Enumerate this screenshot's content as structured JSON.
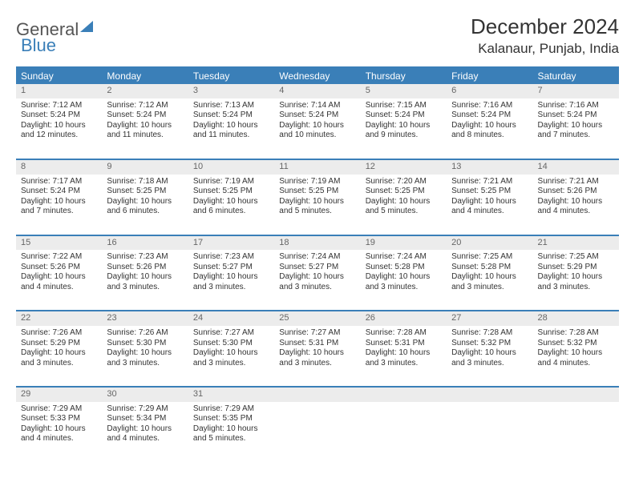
{
  "logo": {
    "part1": "General",
    "part2": "Blue"
  },
  "title": "December 2024",
  "location": "Kalanaur, Punjab, India",
  "colors": {
    "header_bg": "#3a7fb8",
    "header_text": "#ffffff",
    "daynum_bg": "#ececec",
    "daynum_text": "#666666",
    "body_text": "#333333",
    "rule": "#3a7fb8",
    "page_bg": "#ffffff"
  },
  "weekdays": [
    "Sunday",
    "Monday",
    "Tuesday",
    "Wednesday",
    "Thursday",
    "Friday",
    "Saturday"
  ],
  "weeks": [
    [
      {
        "n": 1,
        "sr": "7:12 AM",
        "ss": "5:24 PM",
        "dl": "10 hours and 12 minutes."
      },
      {
        "n": 2,
        "sr": "7:12 AM",
        "ss": "5:24 PM",
        "dl": "10 hours and 11 minutes."
      },
      {
        "n": 3,
        "sr": "7:13 AM",
        "ss": "5:24 PM",
        "dl": "10 hours and 11 minutes."
      },
      {
        "n": 4,
        "sr": "7:14 AM",
        "ss": "5:24 PM",
        "dl": "10 hours and 10 minutes."
      },
      {
        "n": 5,
        "sr": "7:15 AM",
        "ss": "5:24 PM",
        "dl": "10 hours and 9 minutes."
      },
      {
        "n": 6,
        "sr": "7:16 AM",
        "ss": "5:24 PM",
        "dl": "10 hours and 8 minutes."
      },
      {
        "n": 7,
        "sr": "7:16 AM",
        "ss": "5:24 PM",
        "dl": "10 hours and 7 minutes."
      }
    ],
    [
      {
        "n": 8,
        "sr": "7:17 AM",
        "ss": "5:24 PM",
        "dl": "10 hours and 7 minutes."
      },
      {
        "n": 9,
        "sr": "7:18 AM",
        "ss": "5:25 PM",
        "dl": "10 hours and 6 minutes."
      },
      {
        "n": 10,
        "sr": "7:19 AM",
        "ss": "5:25 PM",
        "dl": "10 hours and 6 minutes."
      },
      {
        "n": 11,
        "sr": "7:19 AM",
        "ss": "5:25 PM",
        "dl": "10 hours and 5 minutes."
      },
      {
        "n": 12,
        "sr": "7:20 AM",
        "ss": "5:25 PM",
        "dl": "10 hours and 5 minutes."
      },
      {
        "n": 13,
        "sr": "7:21 AM",
        "ss": "5:25 PM",
        "dl": "10 hours and 4 minutes."
      },
      {
        "n": 14,
        "sr": "7:21 AM",
        "ss": "5:26 PM",
        "dl": "10 hours and 4 minutes."
      }
    ],
    [
      {
        "n": 15,
        "sr": "7:22 AM",
        "ss": "5:26 PM",
        "dl": "10 hours and 4 minutes."
      },
      {
        "n": 16,
        "sr": "7:23 AM",
        "ss": "5:26 PM",
        "dl": "10 hours and 3 minutes."
      },
      {
        "n": 17,
        "sr": "7:23 AM",
        "ss": "5:27 PM",
        "dl": "10 hours and 3 minutes."
      },
      {
        "n": 18,
        "sr": "7:24 AM",
        "ss": "5:27 PM",
        "dl": "10 hours and 3 minutes."
      },
      {
        "n": 19,
        "sr": "7:24 AM",
        "ss": "5:28 PM",
        "dl": "10 hours and 3 minutes."
      },
      {
        "n": 20,
        "sr": "7:25 AM",
        "ss": "5:28 PM",
        "dl": "10 hours and 3 minutes."
      },
      {
        "n": 21,
        "sr": "7:25 AM",
        "ss": "5:29 PM",
        "dl": "10 hours and 3 minutes."
      }
    ],
    [
      {
        "n": 22,
        "sr": "7:26 AM",
        "ss": "5:29 PM",
        "dl": "10 hours and 3 minutes."
      },
      {
        "n": 23,
        "sr": "7:26 AM",
        "ss": "5:30 PM",
        "dl": "10 hours and 3 minutes."
      },
      {
        "n": 24,
        "sr": "7:27 AM",
        "ss": "5:30 PM",
        "dl": "10 hours and 3 minutes."
      },
      {
        "n": 25,
        "sr": "7:27 AM",
        "ss": "5:31 PM",
        "dl": "10 hours and 3 minutes."
      },
      {
        "n": 26,
        "sr": "7:28 AM",
        "ss": "5:31 PM",
        "dl": "10 hours and 3 minutes."
      },
      {
        "n": 27,
        "sr": "7:28 AM",
        "ss": "5:32 PM",
        "dl": "10 hours and 3 minutes."
      },
      {
        "n": 28,
        "sr": "7:28 AM",
        "ss": "5:32 PM",
        "dl": "10 hours and 4 minutes."
      }
    ],
    [
      {
        "n": 29,
        "sr": "7:29 AM",
        "ss": "5:33 PM",
        "dl": "10 hours and 4 minutes."
      },
      {
        "n": 30,
        "sr": "7:29 AM",
        "ss": "5:34 PM",
        "dl": "10 hours and 4 minutes."
      },
      {
        "n": 31,
        "sr": "7:29 AM",
        "ss": "5:35 PM",
        "dl": "10 hours and 5 minutes."
      },
      null,
      null,
      null,
      null
    ]
  ],
  "labels": {
    "sunrise": "Sunrise:",
    "sunset": "Sunset:",
    "daylight": "Daylight:"
  }
}
